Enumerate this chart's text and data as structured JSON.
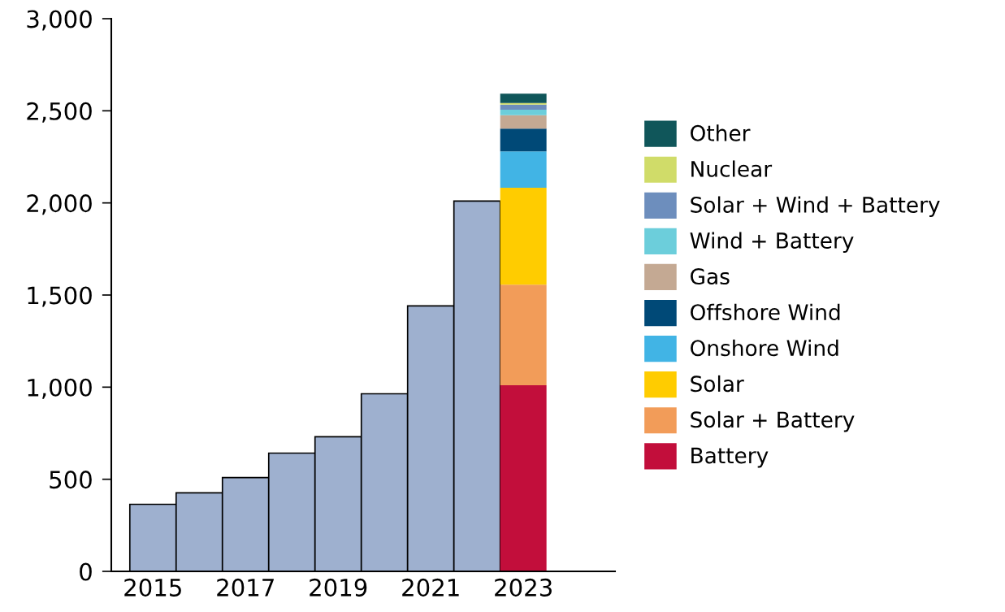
{
  "chart_data": {
    "type": "bar",
    "stacked": true,
    "categories": [
      "2015",
      null,
      "2017",
      null,
      "2019",
      null,
      "2021",
      null,
      "2023"
    ],
    "series": [
      {
        "color": "#9eb0cf",
        "values": [
          364,
          426,
          509,
          642,
          731,
          964,
          1441,
          2010,
          null
        ]
      },
      {
        "name": "Battery",
        "color": "#c20e3b",
        "values": [
          null,
          null,
          null,
          null,
          null,
          null,
          null,
          null,
          1010
        ]
      },
      {
        "name": "Solar + Battery",
        "color": "#f29c59",
        "values": [
          null,
          null,
          null,
          null,
          null,
          null,
          null,
          null,
          546
        ]
      },
      {
        "name": "Solar",
        "color": "#ffcc00",
        "values": [
          null,
          null,
          null,
          null,
          null,
          null,
          null,
          null,
          526
        ]
      },
      {
        "name": "Onshore Wind",
        "color": "#41b4e5",
        "values": [
          null,
          null,
          null,
          null,
          null,
          null,
          null,
          null,
          198
        ]
      },
      {
        "name": "Offshore Wind",
        "color": "#004977",
        "values": [
          null,
          null,
          null,
          null,
          null,
          null,
          null,
          null,
          123
        ]
      },
      {
        "name": "Gas",
        "color": "#c4a993",
        "values": [
          null,
          null,
          null,
          null,
          null,
          null,
          null,
          null,
          73
        ]
      },
      {
        "name": "Wind + Battery",
        "color": "#6ccedb",
        "values": [
          null,
          null,
          null,
          null,
          null,
          null,
          null,
          null,
          30
        ]
      },
      {
        "name": "Solar + Wind + Battery",
        "color": "#6d8ebd",
        "values": [
          null,
          null,
          null,
          null,
          null,
          null,
          null,
          null,
          27
        ]
      },
      {
        "name": "Nuclear",
        "color": "#d0dc69",
        "values": [
          null,
          null,
          null,
          null,
          null,
          null,
          null,
          null,
          9
        ]
      },
      {
        "name": "Other",
        "color": "#10565a",
        "values": [
          null,
          null,
          null,
          null,
          null,
          null,
          null,
          null,
          51
        ]
      }
    ],
    "ylim": [
      0,
      3000
    ],
    "yticks": [
      {
        "value": 0,
        "label": "0"
      },
      {
        "value": 500,
        "label": "500"
      },
      {
        "value": 1000,
        "label": "1,000"
      },
      {
        "value": 1500,
        "label": "1,500"
      },
      {
        "value": 2000,
        "label": "2,000"
      },
      {
        "value": 2500,
        "label": "2,500"
      },
      {
        "value": 3000,
        "label": "3,000"
      }
    ],
    "legend": "right",
    "grid": false
  }
}
